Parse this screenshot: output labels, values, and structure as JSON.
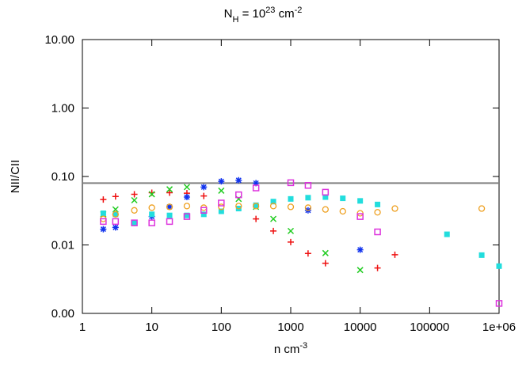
{
  "chart_data": {
    "type": "scatter",
    "title": [
      {
        "text": "N"
      },
      {
        "text": "H",
        "shift": "sub"
      },
      {
        "text": " = 10"
      },
      {
        "text": "23",
        "shift": "super"
      },
      {
        "text": " cm"
      },
      {
        "text": "-2",
        "shift": "super"
      }
    ],
    "x_label": [
      {
        "text": "n cm"
      },
      {
        "text": "-3",
        "shift": "super"
      }
    ],
    "y_label": "NII/CII",
    "xlog": true,
    "ylog": true,
    "xlim": [
      1,
      1000000
    ],
    "ylim": [
      0.001,
      10
    ],
    "xticks": [
      1,
      10,
      100,
      1000,
      10000,
      100000,
      {
        "value": 1000000,
        "label": "1e+06"
      }
    ],
    "yticks": [
      {
        "value": 0.001,
        "label": "0.00"
      },
      {
        "value": 0.01,
        "label": "0.01"
      },
      {
        "value": 0.1,
        "label": "0.10"
      },
      {
        "value": 1,
        "label": "1.00"
      },
      {
        "value": 10,
        "label": "10.00"
      }
    ],
    "reference_line": {
      "value": 0.08,
      "color": "#808080"
    },
    "series": [
      {
        "marker": "plus",
        "color": "#ee1111",
        "x": [
          2,
          3,
          5.6,
          10,
          18,
          32,
          56,
          316,
          562,
          1000,
          1778,
          3162,
          17783,
          31623
        ],
        "values": [
          0.046,
          0.051,
          0.055,
          0.058,
          0.058,
          0.057,
          0.052,
          0.024,
          0.016,
          0.011,
          0.0075,
          0.0054,
          0.0046,
          0.0072
        ]
      },
      {
        "marker": "cross",
        "color": "#22cc22",
        "x": [
          2,
          3,
          5.6,
          10,
          18,
          32,
          100,
          178,
          316,
          562,
          1000,
          3162,
          10000
        ],
        "values": [
          0.028,
          0.033,
          0.045,
          0.055,
          0.065,
          0.07,
          0.062,
          0.047,
          0.036,
          0.024,
          0.016,
          0.0076,
          0.0043
        ]
      },
      {
        "marker": "asterisk",
        "color": "#1133ee",
        "x": [
          2,
          3,
          5.6,
          10,
          18,
          32,
          56,
          100,
          178,
          316,
          1778,
          10000
        ],
        "values": [
          0.017,
          0.018,
          0.021,
          0.026,
          0.036,
          0.05,
          0.07,
          0.085,
          0.088,
          0.08,
          0.032,
          0.0085
        ]
      },
      {
        "marker": "filled-square",
        "color": "#22dddd",
        "x": [
          2,
          3,
          5.6,
          10,
          18,
          32,
          56,
          100,
          178,
          316,
          562,
          1000,
          1778,
          3162,
          5623,
          10000,
          17783,
          177828,
          562341,
          1000000
        ],
        "values": [
          0.029,
          0.028,
          0.021,
          0.028,
          0.027,
          0.027,
          0.028,
          0.031,
          0.034,
          0.038,
          0.043,
          0.047,
          0.049,
          0.05,
          0.048,
          0.044,
          0.039,
          0.0143,
          0.0071,
          0.0049
        ]
      },
      {
        "marker": "circle",
        "color": "#eea020",
        "x": [
          2,
          3,
          5.6,
          10,
          18,
          32,
          56,
          100,
          178,
          316,
          562,
          1000,
          1778,
          3162,
          5623,
          10000,
          17783,
          31623,
          562341
        ],
        "values": [
          0.024,
          0.028,
          0.032,
          0.035,
          0.036,
          0.037,
          0.035,
          0.036,
          0.037,
          0.037,
          0.037,
          0.036,
          0.035,
          0.033,
          0.031,
          0.029,
          0.03,
          0.034,
          0.034
        ]
      },
      {
        "marker": "open-square",
        "color": "#dd33dd",
        "x": [
          2,
          3,
          5.6,
          10,
          18,
          32,
          56,
          100,
          178,
          316,
          1000,
          1778,
          3162,
          10000,
          17783,
          1000000
        ],
        "values": [
          0.022,
          0.022,
          0.021,
          0.021,
          0.022,
          0.026,
          0.032,
          0.041,
          0.054,
          0.068,
          0.081,
          0.074,
          0.059,
          0.026,
          0.0155,
          0.0014
        ]
      }
    ]
  }
}
